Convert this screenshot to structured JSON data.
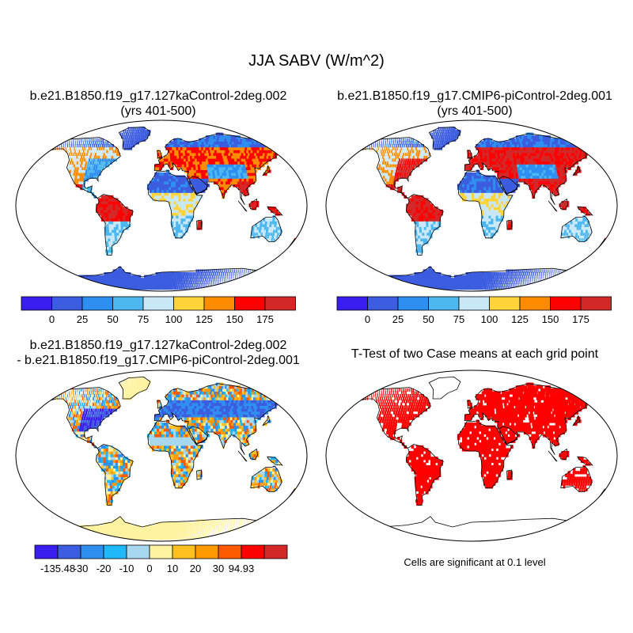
{
  "figure": {
    "title": "JJA SABV (W/m^2)"
  },
  "panels": [
    {
      "id": "case1",
      "title_line1": "b.e21.B1850.f19_g17.127kaControl-2deg.002",
      "title_line2": "(yrs 401-500)",
      "scheme": "abs"
    },
    {
      "id": "case2",
      "title_line1": "b.e21.B1850.f19_g17.CMIP6-piControl-2deg.001",
      "title_line2": "(yrs 401-500)",
      "scheme": "abs"
    },
    {
      "id": "diff",
      "title_line1": "b.e21.B1850.f19_g17.127kaControl-2deg.002",
      "title_line2": "- b.e21.B1850.f19_g17.CMIP6-piControl-2deg.001",
      "scheme": "diff"
    },
    {
      "id": "ttest",
      "title_line1": "T-Test of two Case means at each grid point",
      "title_line2": "",
      "scheme": "sig"
    }
  ],
  "colorbars": {
    "abs": {
      "colors": [
        "#3a1ef0",
        "#3d5de0",
        "#2f8ff0",
        "#4db8f0",
        "#c8e8f8",
        "#ffd43a",
        "#ff8c00",
        "#ff0000",
        "#d42828"
      ],
      "labels": [
        "0",
        "25",
        "50",
        "75",
        "100",
        "125",
        "150",
        "175"
      ]
    },
    "diff": {
      "colors": [
        "#3a1ef0",
        "#3d5de0",
        "#2f8ff0",
        "#20b8f8",
        "#a8d8f0",
        "#fff2a0",
        "#ffc020",
        "#ff9a00",
        "#ff5a00",
        "#ff0000",
        "#d42828"
      ],
      "labels": [
        "-135.48",
        "-30",
        "-20",
        "-10",
        "0",
        "10",
        "20",
        "30",
        "94.93"
      ]
    }
  },
  "significance": {
    "color": "#ff0000",
    "note": "Cells are significant at 0.1 level"
  }
}
